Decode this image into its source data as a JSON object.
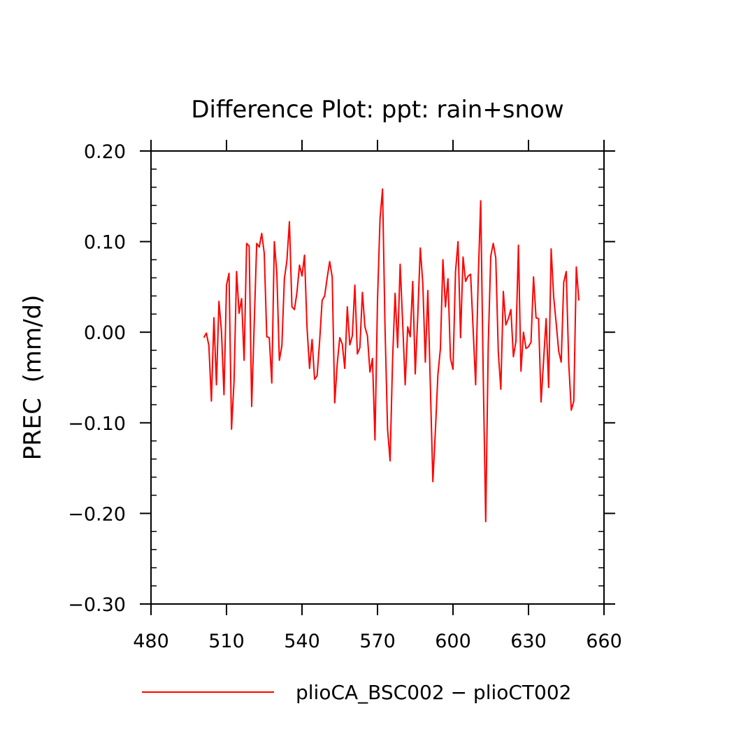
{
  "chart_data": {
    "type": "line",
    "title": "Difference Plot: ppt: rain+snow",
    "xlabel": "",
    "ylabel": "PREC  (mm/d)",
    "xlim": [
      480,
      660
    ],
    "ylim": [
      -0.3,
      0.2
    ],
    "xticks": [
      480,
      510,
      540,
      570,
      600,
      630,
      660
    ],
    "xtick_labels": [
      "480",
      "510",
      "540",
      "570",
      "600",
      "630",
      "660"
    ],
    "yticks": [
      -0.3,
      -0.2,
      -0.1,
      0.0,
      0.1,
      0.2
    ],
    "ytick_labels": [
      "−0.30",
      "−0.20",
      "−0.10",
      "0.00",
      "0.10",
      "0.20"
    ],
    "grid": false,
    "legend_position": "bottom",
    "series": [
      {
        "name": "plioCA_BSC002 − plioCT002",
        "color": "#ff0000",
        "x": [
          501,
          502,
          503,
          504,
          505,
          506,
          507,
          508,
          509,
          510,
          511,
          512,
          513,
          514,
          515,
          516,
          517,
          518,
          519,
          520,
          521,
          522,
          523,
          524,
          525,
          526,
          527,
          528,
          529,
          530,
          531,
          532,
          533,
          534,
          535,
          536,
          537,
          538,
          539,
          540,
          541,
          542,
          543,
          544,
          545,
          546,
          547,
          548,
          549,
          550,
          551,
          552,
          553,
          554,
          555,
          556,
          557,
          558,
          559,
          560,
          561,
          562,
          563,
          564,
          565,
          566,
          567,
          568,
          569,
          570,
          571,
          572,
          573,
          574,
          575,
          576,
          577,
          578,
          579,
          580,
          581,
          582,
          583,
          584,
          585,
          586,
          587,
          588,
          589,
          590,
          591,
          592,
          593,
          594,
          595,
          596,
          597,
          598,
          599,
          600,
          601,
          602,
          603,
          604,
          605,
          606,
          607,
          608,
          609,
          610,
          611,
          612,
          613,
          614,
          615,
          616,
          617,
          618,
          619,
          620,
          621,
          622,
          623,
          624,
          625,
          626,
          627,
          628,
          629,
          630,
          631,
          632,
          633,
          634,
          635,
          636,
          637,
          638,
          639,
          640,
          641,
          642,
          643,
          644,
          645,
          646,
          647,
          648,
          649,
          650
        ],
        "y": [
          -0.006,
          -0.001,
          -0.015,
          -0.076,
          0.016,
          -0.058,
          0.034,
          0.001,
          -0.069,
          0.052,
          0.065,
          -0.107,
          -0.054,
          0.067,
          0.021,
          0.037,
          -0.031,
          0.098,
          0.095,
          -0.082,
          0.008,
          0.098,
          0.094,
          0.109,
          0.087,
          -0.005,
          -0.006,
          -0.056,
          0.1,
          0.065,
          -0.031,
          -0.015,
          0.059,
          0.079,
          0.122,
          0.028,
          0.025,
          0.044,
          0.074,
          0.062,
          0.085,
          0.005,
          -0.04,
          -0.008,
          -0.052,
          -0.048,
          -0.01,
          0.035,
          0.04,
          0.06,
          0.078,
          0.061,
          -0.078,
          -0.035,
          -0.006,
          -0.013,
          -0.04,
          0.028,
          -0.014,
          -0.004,
          0.052,
          -0.024,
          -0.017,
          0.044,
          0.006,
          -0.004,
          -0.044,
          -0.029,
          -0.119,
          0.035,
          0.125,
          0.158,
          0.004,
          -0.107,
          -0.142,
          -0.03,
          0.043,
          -0.017,
          0.075,
          0.01,
          -0.058,
          0.006,
          -0.005,
          0.056,
          -0.046,
          0.018,
          0.093,
          0.054,
          -0.033,
          0.046,
          -0.059,
          -0.165,
          -0.109,
          -0.047,
          -0.018,
          0.08,
          0.028,
          0.059,
          -0.029,
          -0.041,
          0.067,
          0.1,
          -0.006,
          0.083,
          0.056,
          0.062,
          0.064,
          0.003,
          -0.058,
          0.057,
          0.145,
          -0.045,
          -0.209,
          -0.015,
          0.084,
          0.098,
          0.082,
          -0.022,
          -0.063,
          0.045,
          0.008,
          0.015,
          0.025,
          -0.027,
          -0.01,
          0.096,
          -0.043,
          0.0,
          -0.018,
          -0.016,
          -0.011,
          0.061,
          0.016,
          0.015,
          -0.077,
          -0.031,
          0.015,
          -0.061,
          0.092,
          0.039,
          0.01,
          -0.021,
          -0.033,
          0.055,
          0.067,
          -0.035,
          -0.086,
          -0.076,
          0.072,
          0.035
        ]
      }
    ]
  }
}
